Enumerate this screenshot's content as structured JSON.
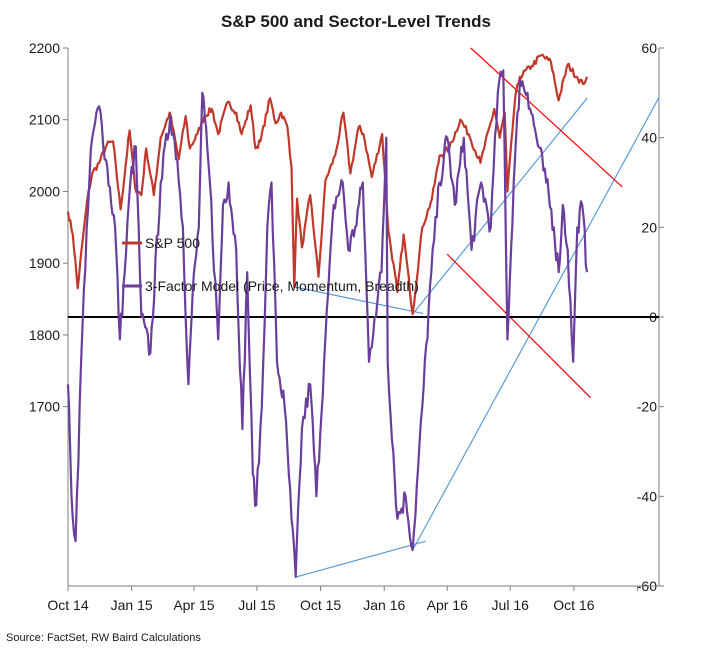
{
  "chart_data": {
    "type": "line",
    "title": "S&P 500 and Sector-Level Trends",
    "source": "Source: FactSet, RW Baird Calculations",
    "x_tick_labels": [
      "Oct 14",
      "Jan 15",
      "Apr 15",
      "Jul 15",
      "Oct 15",
      "Jan 16",
      "Apr 16",
      "Jul 16",
      "Oct 16"
    ],
    "x_range": [
      "2014-10-01",
      "2017-02-01"
    ],
    "left_axis": {
      "ticks": [
        1700,
        1800,
        1900,
        2000,
        2100,
        2200
      ],
      "range": [
        1450,
        2200
      ]
    },
    "right_axis": {
      "ticks": [
        -60,
        -40,
        -20,
        0,
        20,
        40,
        60
      ],
      "range": [
        -60,
        60
      ]
    },
    "legend_position": "middle-left",
    "series": [
      {
        "name": "S&P 500",
        "axis": "left",
        "color": "#c0392b",
        "points": [
          [
            "2014-10-01",
            1972
          ],
          [
            "2014-10-08",
            1940
          ],
          [
            "2014-10-15",
            1865
          ],
          [
            "2014-10-22",
            1930
          ],
          [
            "2014-10-29",
            1990
          ],
          [
            "2014-11-05",
            2025
          ],
          [
            "2014-11-15",
            2040
          ],
          [
            "2014-11-26",
            2065
          ],
          [
            "2014-12-05",
            2070
          ],
          [
            "2014-12-16",
            1975
          ],
          [
            "2014-12-29",
            2085
          ],
          [
            "2015-01-06",
            2005
          ],
          [
            "2015-01-15",
            1995
          ],
          [
            "2015-01-22",
            2060
          ],
          [
            "2015-02-02",
            1995
          ],
          [
            "2015-02-12",
            2075
          ],
          [
            "2015-02-25",
            2110
          ],
          [
            "2015-03-10",
            2045
          ],
          [
            "2015-03-20",
            2105
          ],
          [
            "2015-03-26",
            2060
          ],
          [
            "2015-04-06",
            2080
          ],
          [
            "2015-04-16",
            2105
          ],
          [
            "2015-04-27",
            2115
          ],
          [
            "2015-05-06",
            2080
          ],
          [
            "2015-05-20",
            2125
          ],
          [
            "2015-06-01",
            2110
          ],
          [
            "2015-06-09",
            2080
          ],
          [
            "2015-06-22",
            2120
          ],
          [
            "2015-06-29",
            2060
          ],
          [
            "2015-07-06",
            2070
          ],
          [
            "2015-07-20",
            2130
          ],
          [
            "2015-07-28",
            2095
          ],
          [
            "2015-08-05",
            2110
          ],
          [
            "2015-08-14",
            2090
          ],
          [
            "2015-08-20",
            2035
          ],
          [
            "2015-08-24",
            1867
          ],
          [
            "2015-08-28",
            1990
          ],
          [
            "2015-09-04",
            1922
          ],
          [
            "2015-09-16",
            1995
          ],
          [
            "2015-09-28",
            1881
          ],
          [
            "2015-10-08",
            2015
          ],
          [
            "2015-10-22",
            2050
          ],
          [
            "2015-11-03",
            2110
          ],
          [
            "2015-11-13",
            2025
          ],
          [
            "2015-11-25",
            2090
          ],
          [
            "2015-12-02",
            2080
          ],
          [
            "2015-12-14",
            2020
          ],
          [
            "2015-12-29",
            2080
          ],
          [
            "2016-01-07",
            1945
          ],
          [
            "2016-01-20",
            1860
          ],
          [
            "2016-01-29",
            1940
          ],
          [
            "2016-02-11",
            1829
          ],
          [
            "2016-02-25",
            1950
          ],
          [
            "2016-03-10",
            1990
          ],
          [
            "2016-03-21",
            2050
          ],
          [
            "2016-04-04",
            2060
          ],
          [
            "2016-04-20",
            2100
          ],
          [
            "2016-05-02",
            2080
          ],
          [
            "2016-05-19",
            2040
          ],
          [
            "2016-06-08",
            2115
          ],
          [
            "2016-06-16",
            2075
          ],
          [
            "2016-06-23",
            2110
          ],
          [
            "2016-06-27",
            2000
          ],
          [
            "2016-07-08",
            2130
          ],
          [
            "2016-07-15",
            2160
          ],
          [
            "2016-08-01",
            2175
          ],
          [
            "2016-08-15",
            2190
          ],
          [
            "2016-08-29",
            2180
          ],
          [
            "2016-09-09",
            2127
          ],
          [
            "2016-09-22",
            2177
          ],
          [
            "2016-10-05",
            2160
          ],
          [
            "2016-10-14",
            2150
          ],
          [
            "2016-10-20",
            2160
          ]
        ]
      },
      {
        "name": "3-Factor Model (Price, Momentum, Breadth)",
        "axis": "right",
        "color": "#6a3f9c",
        "points": [
          [
            "2014-10-01",
            -15
          ],
          [
            "2014-10-06",
            -40
          ],
          [
            "2014-10-12",
            -50
          ],
          [
            "2014-10-20",
            -10
          ],
          [
            "2014-10-28",
            20
          ],
          [
            "2014-11-05",
            40
          ],
          [
            "2014-11-15",
            47
          ],
          [
            "2014-11-25",
            35
          ],
          [
            "2014-12-08",
            20
          ],
          [
            "2014-12-15",
            -5
          ],
          [
            "2014-12-22",
            10
          ],
          [
            "2014-12-30",
            30
          ],
          [
            "2015-01-07",
            38
          ],
          [
            "2015-01-15",
            0
          ],
          [
            "2015-01-28",
            -8
          ],
          [
            "2015-02-12",
            30
          ],
          [
            "2015-02-26",
            45
          ],
          [
            "2015-03-08",
            35
          ],
          [
            "2015-03-16",
            20
          ],
          [
            "2015-03-24",
            -15
          ],
          [
            "2015-03-30",
            5
          ],
          [
            "2015-04-08",
            20
          ],
          [
            "2015-04-13",
            50
          ],
          [
            "2015-04-24",
            30
          ],
          [
            "2015-05-06",
            -5
          ],
          [
            "2015-05-13",
            25
          ],
          [
            "2015-05-21",
            30
          ],
          [
            "2015-06-01",
            15
          ],
          [
            "2015-06-10",
            -25
          ],
          [
            "2015-06-17",
            10
          ],
          [
            "2015-06-25",
            -35
          ],
          [
            "2015-06-30",
            -42
          ],
          [
            "2015-07-08",
            -20
          ],
          [
            "2015-07-16",
            20
          ],
          [
            "2015-07-22",
            30
          ],
          [
            "2015-07-30",
            -10
          ],
          [
            "2015-08-10",
            -20
          ],
          [
            "2015-08-20",
            -45
          ],
          [
            "2015-08-26",
            -58
          ],
          [
            "2015-09-04",
            -25
          ],
          [
            "2015-09-16",
            -15
          ],
          [
            "2015-09-25",
            -40
          ],
          [
            "2015-10-06",
            -10
          ],
          [
            "2015-10-20",
            25
          ],
          [
            "2015-11-02",
            30
          ],
          [
            "2015-11-10",
            15
          ],
          [
            "2015-11-20",
            20
          ],
          [
            "2015-12-01",
            30
          ],
          [
            "2015-12-10",
            -10
          ],
          [
            "2015-12-18",
            0
          ],
          [
            "2015-12-28",
            10
          ],
          [
            "2016-01-04",
            40
          ],
          [
            "2016-01-06",
            -10
          ],
          [
            "2016-01-20",
            -45
          ],
          [
            "2016-02-01",
            -40
          ],
          [
            "2016-02-11",
            -52
          ],
          [
            "2016-02-25",
            -20
          ],
          [
            "2016-03-09",
            10
          ],
          [
            "2016-03-21",
            30
          ],
          [
            "2016-04-01",
            40
          ],
          [
            "2016-04-12",
            25
          ],
          [
            "2016-04-25",
            40
          ],
          [
            "2016-05-06",
            15
          ],
          [
            "2016-05-20",
            30
          ],
          [
            "2016-06-03",
            20
          ],
          [
            "2016-06-13",
            50
          ],
          [
            "2016-06-21",
            55
          ],
          [
            "2016-06-27",
            -5
          ],
          [
            "2016-07-06",
            30
          ],
          [
            "2016-07-15",
            53
          ],
          [
            "2016-07-26",
            50
          ],
          [
            "2016-08-08",
            40
          ],
          [
            "2016-08-22",
            30
          ],
          [
            "2016-09-02",
            20
          ],
          [
            "2016-09-09",
            10
          ],
          [
            "2016-09-15",
            25
          ],
          [
            "2016-09-22",
            15
          ],
          [
            "2016-09-30",
            -10
          ],
          [
            "2016-10-06",
            20
          ],
          [
            "2016-10-13",
            25
          ],
          [
            "2016-10-20",
            10
          ]
        ]
      }
    ],
    "annotations": [
      {
        "type": "trendline",
        "axis": "left",
        "color": "#5b9bd5",
        "from": [
          "2015-08-24",
          1867
        ],
        "to": [
          "2016-02-26",
          1830
        ]
      },
      {
        "type": "trendline",
        "axis": "left",
        "color": "#5b9bd5",
        "from": [
          "2016-02-11",
          1829
        ],
        "to": [
          "2016-10-20",
          2130
        ]
      },
      {
        "type": "trendline",
        "axis": "right",
        "color": "#5b9bd5",
        "from": [
          "2015-08-26",
          -58
        ],
        "to": [
          "2016-03-01",
          -50
        ]
      },
      {
        "type": "trendline",
        "axis": "right",
        "color": "#5b9bd5",
        "from": [
          "2016-02-11",
          -52
        ],
        "to": [
          "2017-02-01",
          49
        ]
      },
      {
        "type": "trendline",
        "axis": "right",
        "color": "#ff0000",
        "from": [
          "2016-05-05",
          60
        ],
        "to": [
          "2016-12-10",
          29
        ]
      },
      {
        "type": "trendline",
        "axis": "right",
        "color": "#ff0000",
        "from": [
          "2016-04-01",
          14
        ],
        "to": [
          "2016-10-25",
          -18
        ]
      },
      {
        "type": "reference_line",
        "axis": "right",
        "value": 0,
        "color": "#000000"
      }
    ]
  }
}
